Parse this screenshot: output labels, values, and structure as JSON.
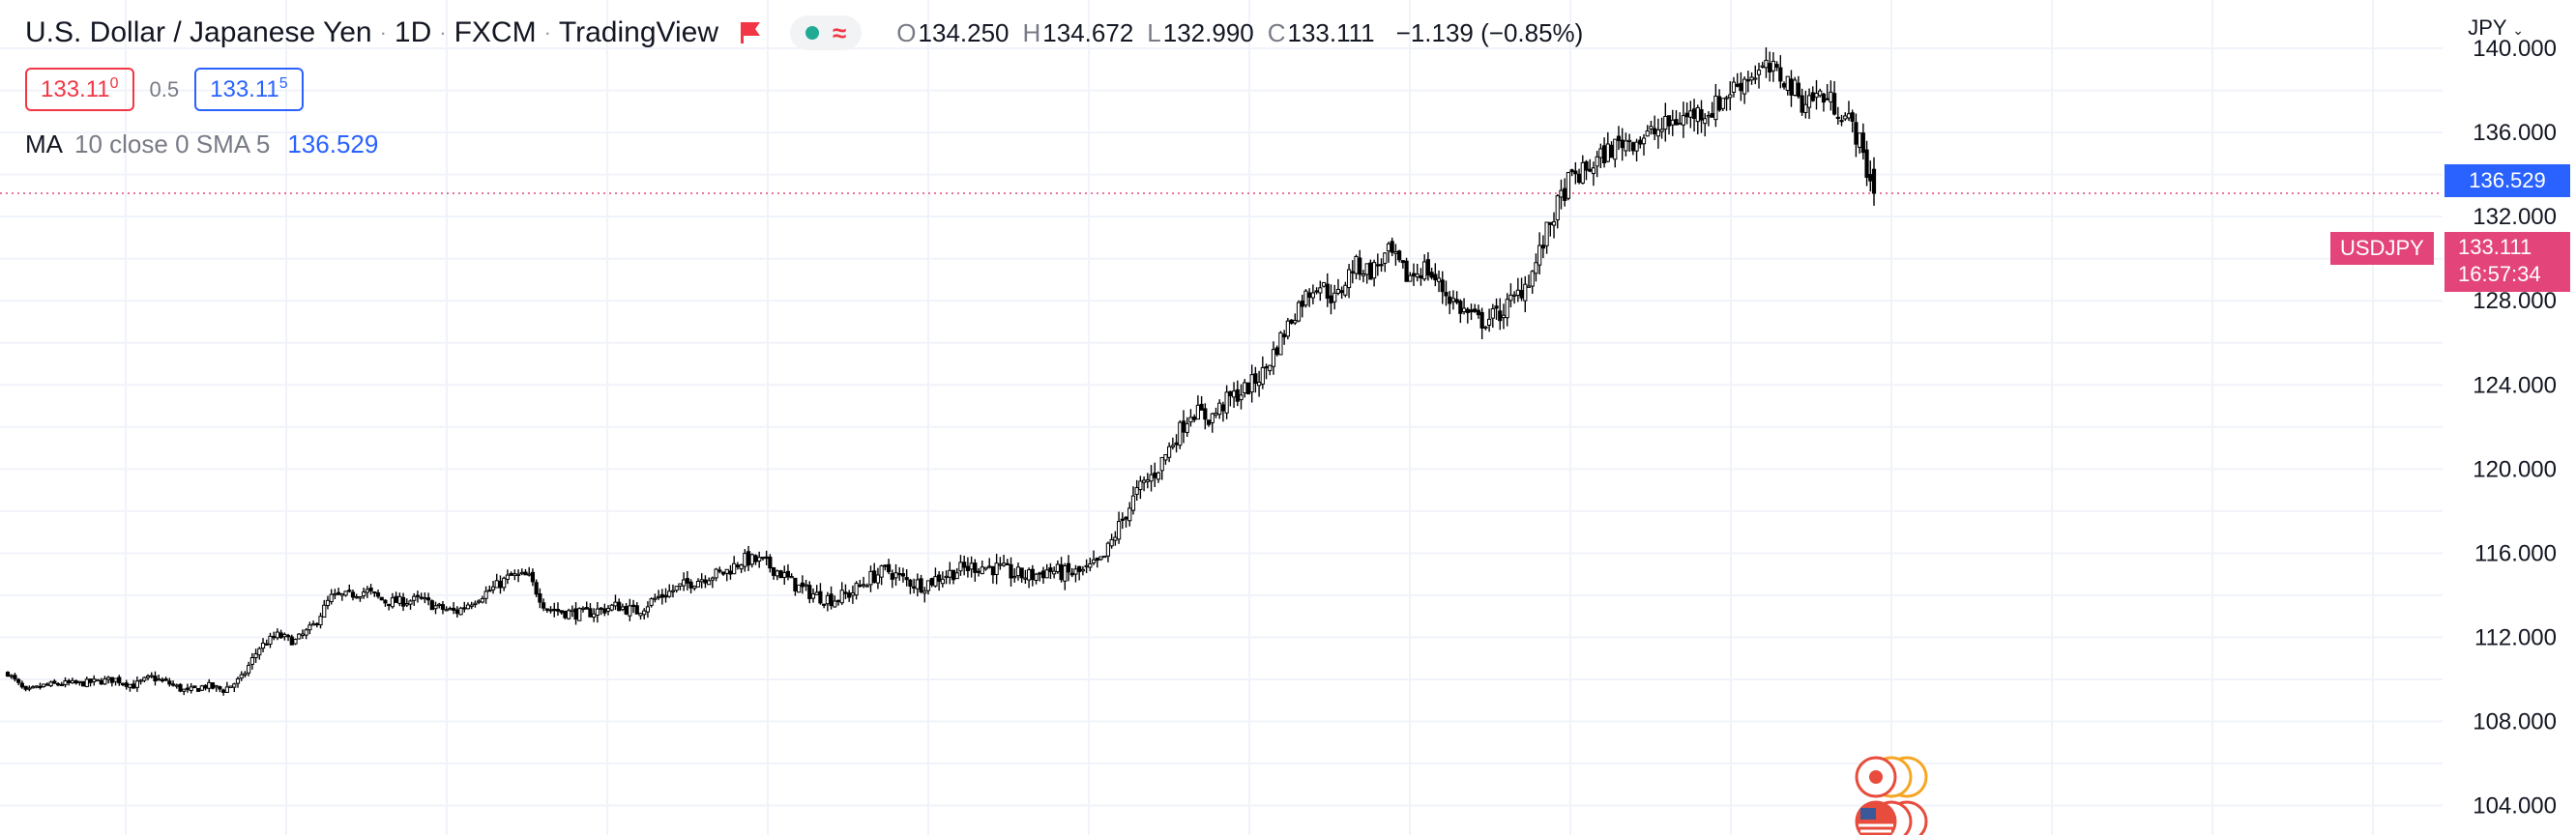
{
  "header": {
    "symbol_name": "U.S. Dollar / Japanese Yen",
    "interval": "1D",
    "broker": "FXCM",
    "source": "TradingView",
    "ohlc": {
      "o": "134.250",
      "h": "134.672",
      "l": "132.990",
      "c": "133.111",
      "change": "−1.139 (−0.85%)"
    },
    "bid": "133.11",
    "bid_sup": "0",
    "spread": "0.5",
    "ask": "133.11",
    "ask_sup": "5",
    "currency": "JPY"
  },
  "indicator": {
    "label": "MA",
    "params": "10 close 0 SMA 5",
    "value": "136.529"
  },
  "tags": {
    "ma_price": "136.529",
    "symbol": "USDJPY",
    "last_price": "133.111",
    "countdown": "16:57:34"
  },
  "colors": {
    "ma": "#2962ff",
    "last": "#e3457a",
    "bid": "#f23645",
    "ask": "#2962ff",
    "candle": "#000000",
    "grid": "#f0f3fa"
  },
  "chart_data": {
    "type": "candlestick",
    "y_axis_ticks": [
      "140.000",
      "136.000",
      "132.000",
      "128.000",
      "124.000",
      "120.000",
      "116.000",
      "112.000",
      "108.000",
      "104.000"
    ],
    "y_tick_values": [
      140,
      136,
      132,
      128,
      124,
      120,
      116,
      112,
      108,
      104
    ],
    "ylim": [
      102.6,
      142.3
    ],
    "grid": true,
    "last_price": 133.111,
    "ma_value": 136.529,
    "close_path": [
      110.3,
      109.4,
      109.7,
      109.8,
      109.8,
      109.9,
      110.0,
      109.7,
      110.1,
      109.8,
      109.4,
      109.7,
      109.5,
      110.0,
      111.5,
      112.1,
      111.8,
      112.5,
      113.9,
      114.0,
      114.2,
      113.7,
      113.7,
      113.8,
      113.4,
      113.2,
      113.8,
      114.3,
      114.9,
      114.9,
      113.4,
      113.2,
      113.1,
      113.3,
      113.5,
      113.2,
      113.8,
      114.2,
      114.6,
      114.9,
      115.1,
      115.7,
      115.6,
      115.1,
      114.4,
      114.0,
      113.8,
      114.1,
      114.8,
      115.2,
      114.7,
      114.5,
      114.9,
      115.2,
      115.4,
      115.3,
      115.0,
      114.9,
      115.2,
      115.0,
      115.1,
      115.6,
      117.4,
      119.0,
      119.9,
      121.4,
      122.8,
      122.4,
      123.3,
      123.8,
      124.6,
      126.3,
      127.9,
      128.9,
      128.0,
      129.7,
      129.4,
      130.3,
      129.1,
      129.6,
      128.5,
      127.6,
      127.0,
      127.3,
      128.1,
      129.4,
      131.8,
      133.7,
      134.2,
      135.0,
      135.6,
      135.7,
      136.1,
      136.6,
      136.9,
      137.1,
      138.0,
      138.7,
      139.0,
      138.6,
      137.5,
      137.8,
      137.2,
      136.0,
      133.1
    ]
  }
}
